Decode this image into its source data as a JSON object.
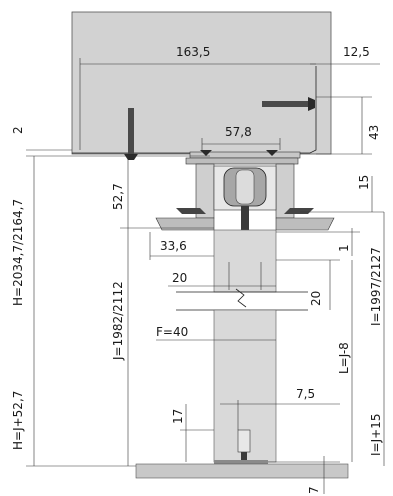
{
  "dimensions": {
    "width_163": "163,5",
    "width_12": "12,5",
    "height_43": "43",
    "gap_2": "2",
    "width_57": "57,8",
    "height_52": "52,7",
    "height_15": "15",
    "h_total": "H=2034,7/2164,7",
    "j_range": "J=1982/2112",
    "width_33": "33,6",
    "width_20_top": "20",
    "one": "1",
    "i_range": "I=1997/2127",
    "height_20": "20",
    "f_40": "F=40",
    "l_expr": "L=J-8",
    "width_7": "7,5",
    "height_17": "17",
    "h_expr": "H=J+52,7",
    "i_expr": "I=J+15",
    "bottom_7": "7"
  },
  "colors": {
    "ceiling": "#d2d2d2",
    "door": "#d9d9d9",
    "floor": "#c8c8c8",
    "metal": "#bdbdbd",
    "dark": "#3a3a3a",
    "line": "#222222"
  }
}
